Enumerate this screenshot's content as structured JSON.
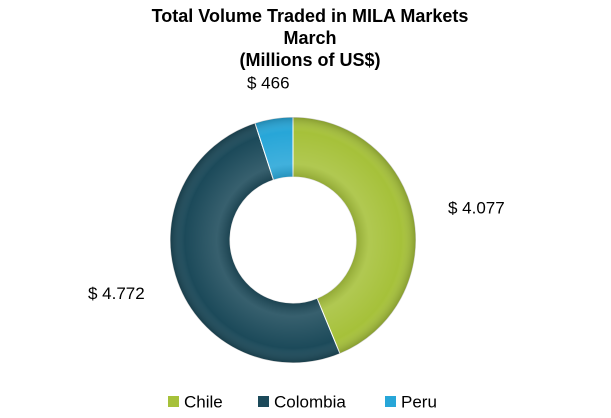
{
  "chart_data": {
    "type": "donut",
    "title": [
      "Total Volume Traded  in MILA Markets",
      "March",
      "(Millions of US$)"
    ],
    "categories": [
      "Chile",
      "Colombia",
      "Peru"
    ],
    "values": [
      4077,
      4772,
      466
    ],
    "value_labels": [
      "$ 4.077",
      "$ 4.772",
      "$ 466"
    ],
    "colors": [
      "#a6c13a",
      "#1c4a5a",
      "#27a6d8"
    ],
    "legend": "bottom"
  }
}
